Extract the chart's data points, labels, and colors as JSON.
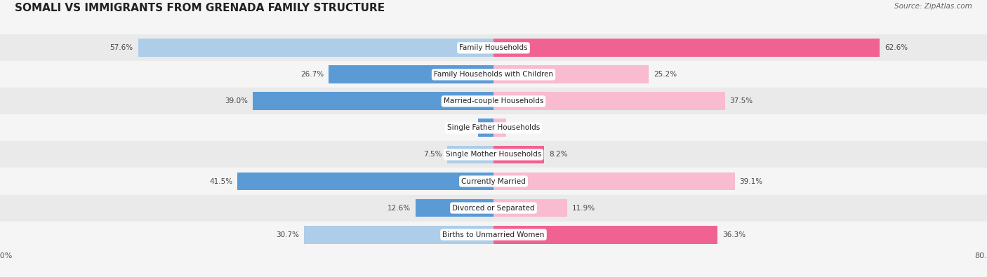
{
  "title": "SOMALI VS IMMIGRANTS FROM GRENADA FAMILY STRUCTURE",
  "source": "Source: ZipAtlas.com",
  "categories": [
    "Family Households",
    "Family Households with Children",
    "Married-couple Households",
    "Single Father Households",
    "Single Mother Households",
    "Currently Married",
    "Divorced or Separated",
    "Births to Unmarried Women"
  ],
  "somali_values": [
    57.6,
    26.7,
    39.0,
    2.5,
    7.5,
    41.5,
    12.6,
    30.7
  ],
  "grenada_values": [
    62.6,
    25.2,
    37.5,
    2.0,
    8.2,
    39.1,
    11.9,
    36.3
  ],
  "somali_color_solid": "#5b9bd5",
  "grenada_color_solid": "#f06292",
  "somali_color_light": "#aecde8",
  "grenada_color_light": "#f8bbd0",
  "bar_height": 0.68,
  "x_max": 80.0,
  "background_color": "#f5f5f5",
  "row_bg_even": "#eaeaea",
  "row_bg_odd": "#f5f5f5",
  "label_fontsize": 7.5,
  "title_fontsize": 11,
  "value_fontsize": 7.5,
  "axis_label_fontsize": 8.0
}
